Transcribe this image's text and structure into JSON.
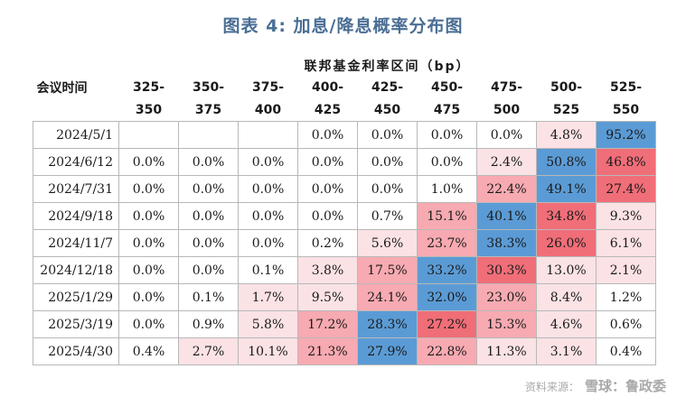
{
  "title": "图表 4:  加息/降息概率分布图",
  "header": {
    "rate_label": "联邦基金利率区间（bp）",
    "row_label": "会议时间",
    "columns": [
      [
        "325-",
        "350"
      ],
      [
        "350-",
        "375"
      ],
      [
        "375-",
        "400"
      ],
      [
        "400-",
        "425"
      ],
      [
        "425-",
        "450"
      ],
      [
        "450-",
        "475"
      ],
      [
        "475-",
        "500"
      ],
      [
        "500-",
        "525"
      ],
      [
        "525-",
        "550"
      ]
    ]
  },
  "rows": [
    {
      "date": "2024/5/1",
      "cells": [
        "",
        "",
        "",
        "0.0%",
        "0.0%",
        "0.0%",
        "0.0%",
        "4.8%",
        "95.2%"
      ]
    },
    {
      "date": "2024/6/12",
      "cells": [
        "0.0%",
        "0.0%",
        "0.0%",
        "0.0%",
        "0.0%",
        "0.0%",
        "2.4%",
        "50.8%",
        "46.8%"
      ]
    },
    {
      "date": "2024/7/31",
      "cells": [
        "0.0%",
        "0.0%",
        "0.0%",
        "0.0%",
        "0.0%",
        "1.0%",
        "22.4%",
        "49.1%",
        "27.4%"
      ]
    },
    {
      "date": "2024/9/18",
      "cells": [
        "0.0%",
        "0.0%",
        "0.0%",
        "0.0%",
        "0.7%",
        "15.1%",
        "40.1%",
        "34.8%",
        "9.3%"
      ]
    },
    {
      "date": "2024/11/7",
      "cells": [
        "0.0%",
        "0.0%",
        "0.0%",
        "0.2%",
        "5.6%",
        "23.7%",
        "38.3%",
        "26.0%",
        "6.1%"
      ]
    },
    {
      "date": "2024/12/18",
      "cells": [
        "0.0%",
        "0.0%",
        "0.1%",
        "3.8%",
        "17.5%",
        "33.2%",
        "30.3%",
        "13.0%",
        "2.1%"
      ]
    },
    {
      "date": "2025/1/29",
      "cells": [
        "0.0%",
        "0.1%",
        "1.7%",
        "9.5%",
        "24.1%",
        "32.0%",
        "23.0%",
        "8.4%",
        "1.2%"
      ]
    },
    {
      "date": "2025/3/19",
      "cells": [
        "0.0%",
        "0.9%",
        "5.8%",
        "17.2%",
        "28.3%",
        "27.2%",
        "15.3%",
        "4.6%",
        "0.6%"
      ]
    },
    {
      "date": "2025/4/30",
      "cells": [
        "0.4%",
        "2.7%",
        "10.1%",
        "21.3%",
        "27.9%",
        "22.8%",
        "11.3%",
        "3.1%",
        "0.4%"
      ]
    }
  ],
  "colors": {
    "max": "#5b9bd5",
    "high": "#f06e78",
    "mid": "#f7aab1",
    "low": "#fbe2e5",
    "title": "#4a6e94"
  },
  "watermark": {
    "source": "资料来源：",
    "brand": "雪球：鲁政委"
  }
}
